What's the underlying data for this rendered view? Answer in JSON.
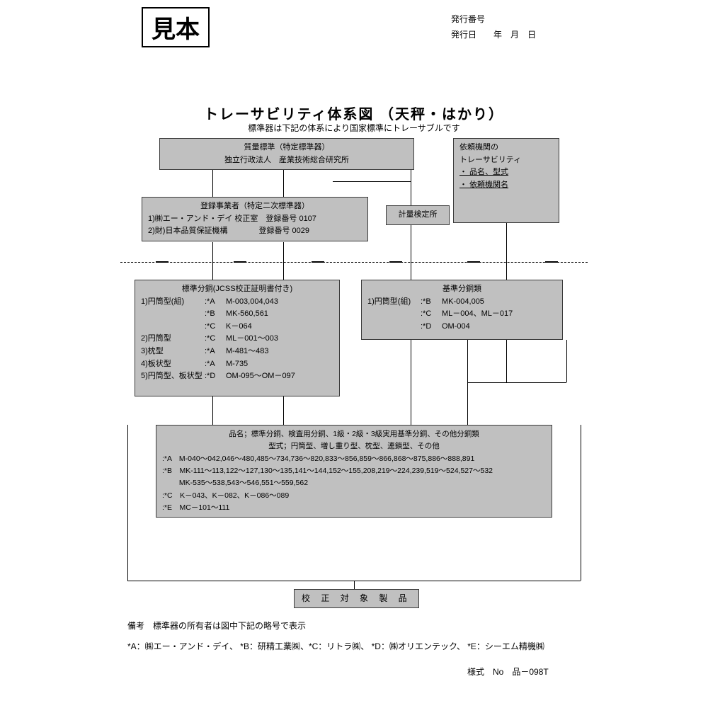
{
  "colors": {
    "box_bg": "#c0c0c0",
    "line": "#000000",
    "page_bg": "#ffffff",
    "text": "#000000"
  },
  "watermark": "見本",
  "issue": {
    "number_label": "発行番号",
    "date_label": "発行日",
    "year": "年",
    "month": "月",
    "day": "日"
  },
  "title": "トレーサビリティ体系図 （天秤・はかり）",
  "subtitle": "標準器は下記の体系により国家標準にトレーサブルです",
  "nodes": {
    "top_std": {
      "title": "質量標準（特定標準器）",
      "org": "独立行政法人　産業技術総合研究所"
    },
    "secondary": {
      "title": "登録事業者（特定二次標準器）",
      "line1": "1)㈱エー・アンド・デイ 校正室　登録番号 0107",
      "line2": "2)財)日本品質保証機構　　　　登録番号 0029"
    },
    "metrology": "計量検定所",
    "client": {
      "l1": "依頼機関の",
      "l2": "トレーサビリティ",
      "l3": "・ 品名、型式",
      "l3b": " ",
      "l4": "・ 依頼機関名"
    },
    "std_weights": {
      "title": "標準分銅(JCSS校正証明書付き)",
      "rows": [
        {
          "c1": "1)円筒型(組)",
          "c2": ":*A",
          "c3": "M-003,004,043"
        },
        {
          "c1": "",
          "c2": ":*B",
          "c3": "MK-560,561"
        },
        {
          "c1": "",
          "c2": ":*C",
          "c3": "K－064"
        },
        {
          "c1": "2)円筒型",
          "c2": ":*C",
          "c3": "ML－001～003"
        },
        {
          "c1": "3)枕型",
          "c2": ":*A",
          "c3": "M-481～483"
        },
        {
          "c1": "4)板状型",
          "c2": ":*A",
          "c3": "M-735"
        },
        {
          "c1": "5)円筒型、板状型",
          "c2": ":*D",
          "c3": "OM-095～OM－097"
        }
      ]
    },
    "ref_weights": {
      "title": "基準分銅類",
      "rows": [
        {
          "c1": "1)円筒型(組)",
          "c2": ":*B",
          "c3": "MK-004,005"
        },
        {
          "c1": "",
          "c2": ":*C",
          "c3": "ML－004、ML－017"
        },
        {
          "c1": "",
          "c2": ":*D",
          "c3": "OM-004"
        }
      ]
    },
    "products": {
      "l1": "品名；標準分銅、検査用分銅、1級・2級・3級実用基準分銅、その他分銅類",
      "l2": "型式；円筒型、増し重り型、枕型、連鎖型、その他",
      "lines": [
        ":*A　M-040～042,046～480,485～734,736～820,833～856,859～866,868～875,886～888,891",
        ":*B　MK-111～113,122～127,130～135,141～144,152～155,208,219～224,239,519～524,527～532",
        "　　 MK-535～538,543～546,551～559,562",
        ":*C　K－043、K－082、K－086～089",
        ":*E　MC－101～111"
      ]
    },
    "final": "校 正 対 象 製 品"
  },
  "notes": {
    "n1": "備考　標準器の所有者は図中下記の略号で表示",
    "n2": "*A：㈱エー・アンド・デイ、 *B：研精工業㈱、*C：リトラ㈱、 *D：㈱オリエンテック、 *E：シーエム精機㈱"
  },
  "form_no": "様式　No　品－098T"
}
